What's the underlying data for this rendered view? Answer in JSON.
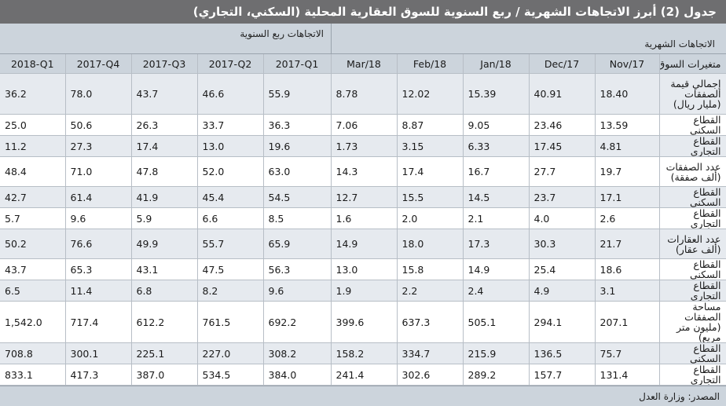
{
  "title": "جدول (2) أبرز الاتجاهات الشهرية / ربع السنوية للسوق العقارية المحلية (السكني، التجاري)",
  "group_labels": {
    "monthly": "الاتجاهات الشهرية",
    "quarterly": "الاتجاهات ربع السنوية"
  },
  "header": {
    "label": "متغيرات السوق",
    "columns": [
      "2018-Q1",
      "2017-Q4",
      "2017-Q3",
      "2017-Q2",
      "2017-Q1",
      "Mar/18",
      "Feb/18",
      "Jan/18",
      "Dec/17",
      "Nov/17"
    ]
  },
  "rows": [
    {
      "label": "إجمالي قيمة الصفقات (مليار ريال)",
      "values": [
        "36.2",
        "78.0",
        "43.7",
        "46.6",
        "55.9",
        "8.78",
        "12.02",
        "15.39",
        "40.91",
        "18.40"
      ]
    },
    {
      "label": "القطاع السكني",
      "values": [
        "25.0",
        "50.6",
        "26.3",
        "33.7",
        "36.3",
        "7.06",
        "8.87",
        "9.05",
        "23.46",
        "13.59"
      ]
    },
    {
      "label": "القطاع التجاري",
      "values": [
        "11.2",
        "27.3",
        "17.4",
        "13.0",
        "19.6",
        "1.73",
        "3.15",
        "6.33",
        "17.45",
        "4.81"
      ]
    },
    {
      "label": "عدد الصفقات (ألف صفقة)",
      "values": [
        "48.4",
        "71.0",
        "47.8",
        "52.0",
        "63.0",
        "14.3",
        "17.4",
        "16.7",
        "27.7",
        "19.7"
      ]
    },
    {
      "label": "القطاع السكني",
      "values": [
        "42.7",
        "61.4",
        "41.9",
        "45.4",
        "54.5",
        "12.7",
        "15.5",
        "14.5",
        "23.7",
        "17.1"
      ]
    },
    {
      "label": "القطاع التجاري",
      "values": [
        "5.7",
        "9.6",
        "5.9",
        "6.6",
        "8.5",
        "1.6",
        "2.0",
        "2.1",
        "4.0",
        "2.6"
      ]
    },
    {
      "label": "عدد العقارات (ألف عقار)",
      "values": [
        "50.2",
        "76.6",
        "49.9",
        "55.7",
        "65.9",
        "14.9",
        "18.0",
        "17.3",
        "30.3",
        "21.7"
      ]
    },
    {
      "label": "القطاع السكني",
      "values": [
        "43.7",
        "65.3",
        "43.1",
        "47.5",
        "56.3",
        "13.0",
        "15.8",
        "14.9",
        "25.4",
        "18.6"
      ]
    },
    {
      "label": "القطاع التجاري",
      "values": [
        "6.5",
        "11.4",
        "6.8",
        "8.2",
        "9.6",
        "1.9",
        "2.2",
        "2.4",
        "4.9",
        "3.1"
      ]
    },
    {
      "label": "مساحة الصفقات (مليون متر مربع)",
      "values": [
        "1,542.0",
        "717.4",
        "612.2",
        "761.5",
        "692.2",
        "399.6",
        "637.3",
        "505.1",
        "294.1",
        "207.1"
      ]
    },
    {
      "label": "القطاع السكني",
      "values": [
        "708.8",
        "300.1",
        "225.1",
        "227.0",
        "308.2",
        "158.2",
        "334.7",
        "215.9",
        "136.5",
        "75.7"
      ]
    },
    {
      "label": "القطاع التجاري",
      "values": [
        "833.1",
        "417.3",
        "387.0",
        "534.5",
        "384.0",
        "241.4",
        "302.6",
        "289.2",
        "157.7",
        "131.4"
      ]
    }
  ],
  "source": "المصدر: وزارة العدل",
  "colors": {
    "title_bg": "#6e6e70",
    "header_bg": "#ccd4dc",
    "shaded_row_bg": "#e6eaef"
  }
}
